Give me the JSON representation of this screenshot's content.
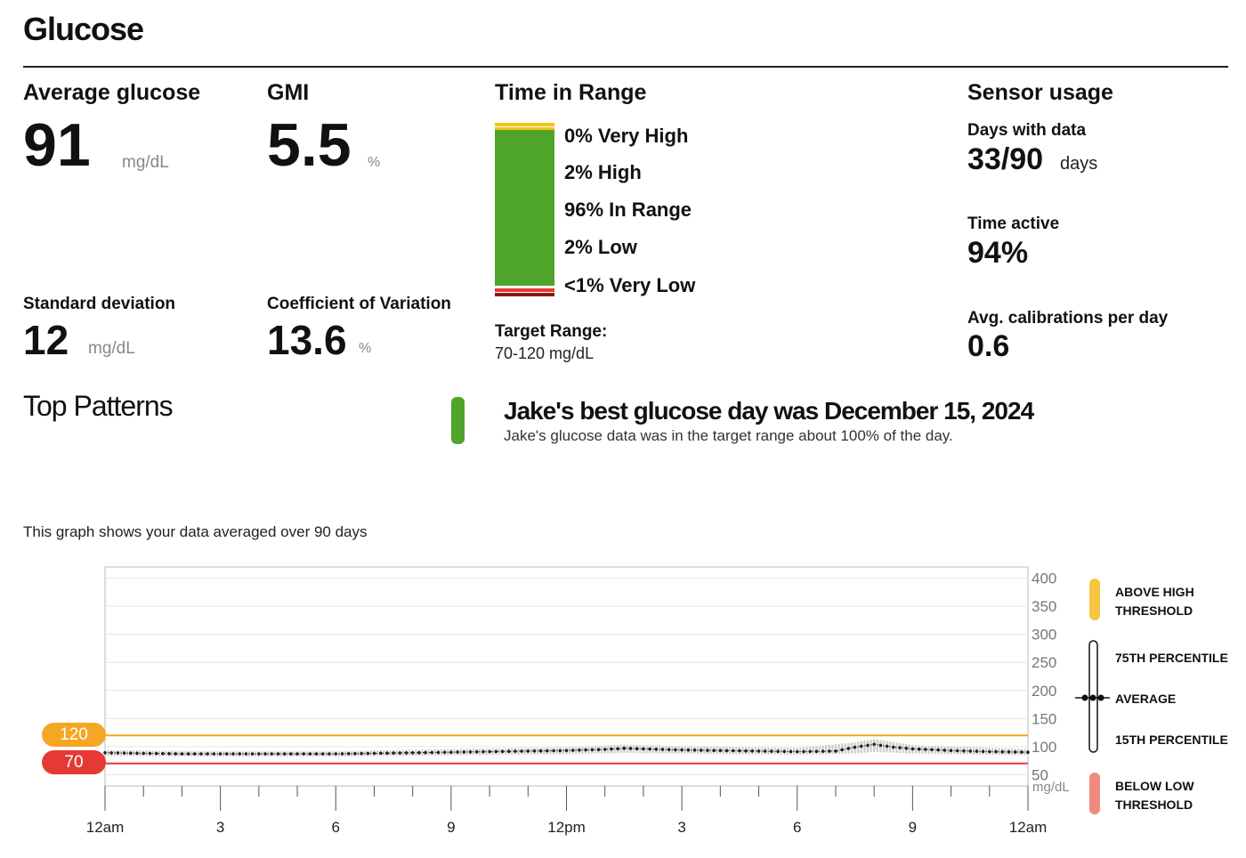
{
  "page": {
    "title": "Glucose"
  },
  "metrics": {
    "avg_glucose": {
      "label": "Average glucose",
      "value": "91",
      "unit": "mg/dL"
    },
    "gmi": {
      "label": "GMI",
      "value": "5.5",
      "unit": "%"
    },
    "std_dev": {
      "label": "Standard deviation",
      "value": "12",
      "unit": "mg/dL"
    },
    "cv": {
      "label": "Coefficient of Variation",
      "value": "13.6",
      "unit": "%"
    }
  },
  "time_in_range": {
    "title": "Time in Range",
    "rows": [
      {
        "label": "0% Very High",
        "percent": 0,
        "color": "#f5c518"
      },
      {
        "label": "2% High",
        "percent": 2,
        "color": "#f5c518"
      },
      {
        "label": "96% In Range",
        "percent": 96,
        "color": "#4ea52a"
      },
      {
        "label": "2% Low",
        "percent": 2,
        "color": "#e53935"
      },
      {
        "label": "<1% Very Low",
        "percent": 0.5,
        "color": "#8b1a1a"
      }
    ],
    "target_label": "Target Range:",
    "target_value": "70-120 mg/dL"
  },
  "sensor_usage": {
    "title": "Sensor usage",
    "days_label": "Days with data",
    "days_value": "33/90",
    "days_unit": "days",
    "active_label": "Time active",
    "active_value": "94%",
    "calib_label": "Avg. calibrations per day",
    "calib_value": "0.6"
  },
  "patterns": {
    "title": "Top Patterns",
    "best_title": "Jake's best glucose day was December 15, 2024",
    "best_sub": "Jake's glucose data was in the target range about 100% of the day.",
    "color": "#4ea52a"
  },
  "graph": {
    "caption": "This graph shows your data averaged over 90 days",
    "high_threshold": "120",
    "low_threshold": "70",
    "high_color": "#f5a623",
    "low_color": "#e53935"
  },
  "legend": {
    "above_high_1": "ABOVE HIGH",
    "above_high_2": "THRESHOLD",
    "p75": "75TH PERCENTILE",
    "average": "AVERAGE",
    "p15": "15TH PERCENTILE",
    "below_low_1": "BELOW LOW",
    "below_low_2": "THRESHOLD",
    "high_color": "#f5c542",
    "low_color": "#f08a80"
  },
  "chart_data": {
    "type": "line",
    "title": "",
    "xlabel": "",
    "ylabel": "mg/dL",
    "x_tick_labels": [
      "12am",
      "3",
      "6",
      "9",
      "12pm",
      "3",
      "6",
      "9",
      "12am"
    ],
    "y_ticks": [
      50,
      100,
      150,
      200,
      250,
      300,
      350,
      400
    ],
    "y_unit_label": "mg/dL",
    "ylim": [
      30,
      420
    ],
    "xlim": [
      0,
      24
    ],
    "thresholds": {
      "high": 120,
      "low": 70
    },
    "series": [
      {
        "name": "Average",
        "x": [
          0,
          1,
          2,
          3,
          4,
          5,
          6,
          7,
          8,
          9,
          10,
          11,
          12,
          13,
          13.5,
          14,
          15,
          16,
          17,
          18,
          19,
          19.5,
          20,
          20.5,
          21,
          22,
          23,
          24
        ],
        "values": [
          89,
          88,
          87,
          87,
          87,
          87,
          87,
          88,
          89,
          90,
          91,
          92,
          93,
          95,
          97,
          96,
          94,
          93,
          92,
          91,
          92,
          99,
          104,
          99,
          96,
          93,
          91,
          90
        ]
      },
      {
        "name": "75th percentile",
        "x": [
          0,
          3,
          6,
          9,
          12,
          13.5,
          15,
          18,
          19.5,
          20,
          21,
          24
        ],
        "values": [
          92,
          90,
          90,
          94,
          97,
          102,
          99,
          96,
          106,
          112,
          101,
          94
        ]
      },
      {
        "name": "15th percentile",
        "x": [
          0,
          3,
          6,
          9,
          12,
          13.5,
          15,
          18,
          19.5,
          20,
          21,
          24
        ],
        "values": [
          85,
          84,
          84,
          86,
          88,
          90,
          89,
          87,
          89,
          92,
          89,
          86
        ]
      }
    ]
  }
}
